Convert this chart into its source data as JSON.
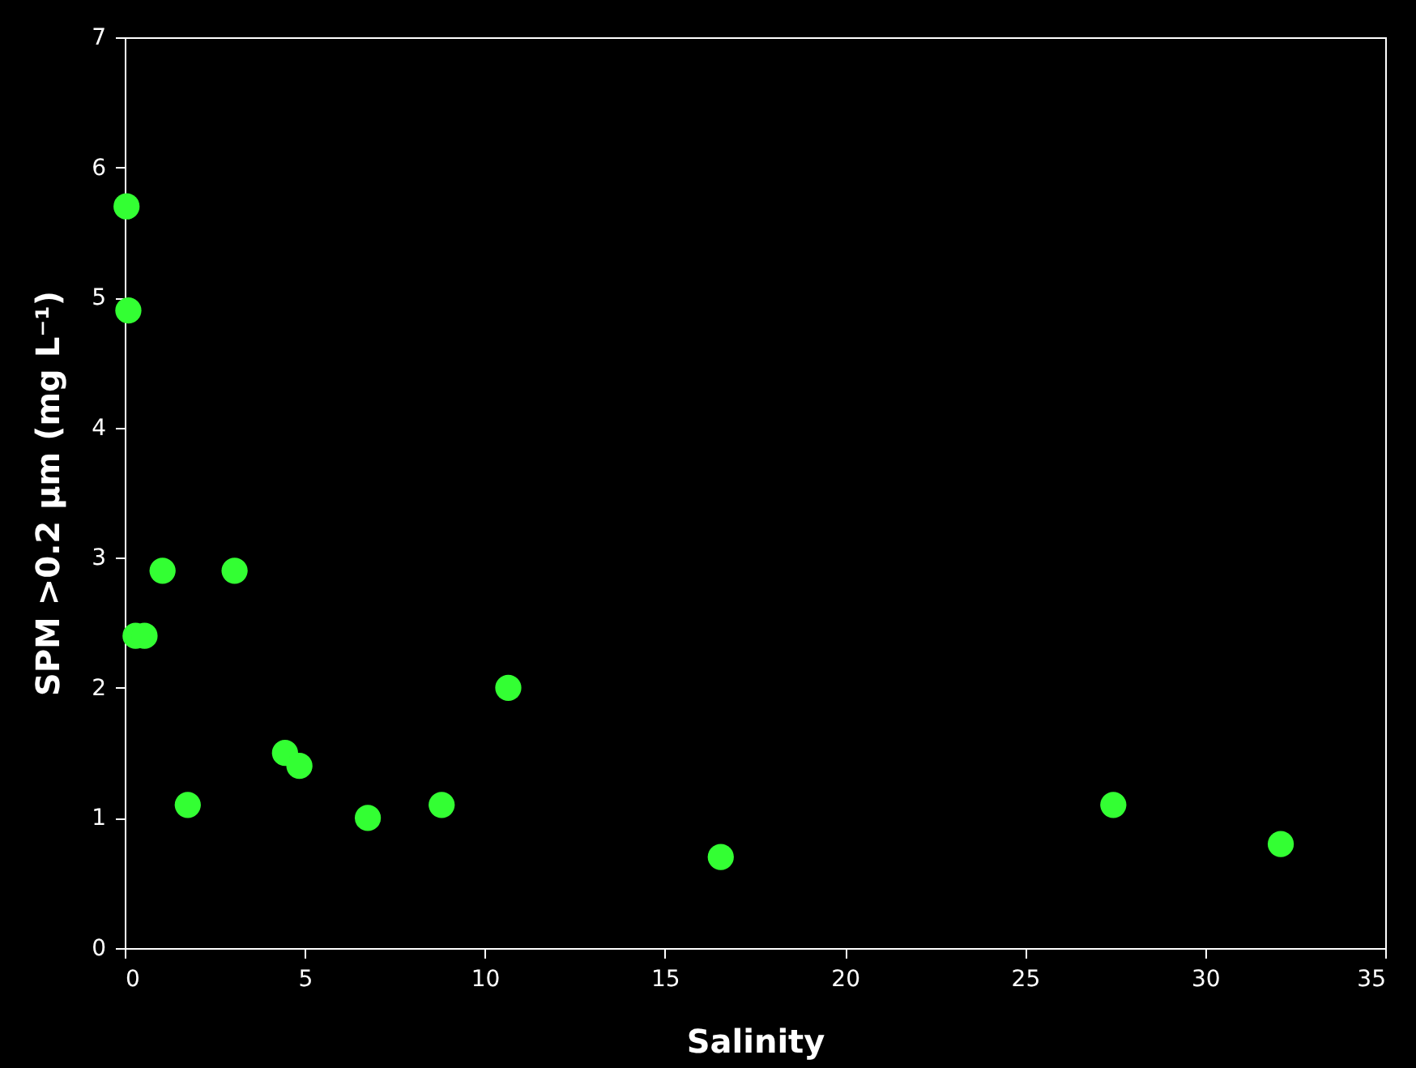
{
  "chart_data": {
    "type": "scatter",
    "xlabel": "Salinity",
    "ylabel": "SPM >0.2 µm (mg L⁻¹)",
    "x": [
      0.05,
      0.1,
      0.3,
      0.55,
      1.05,
      1.75,
      3.05,
      4.45,
      4.85,
      6.75,
      8.8,
      10.65,
      16.55,
      27.45,
      32.1
    ],
    "series": [
      {
        "color": "#33ff33",
        "values": [
          5.7,
          4.9,
          2.4,
          2.4,
          2.9,
          1.1,
          2.9,
          1.5,
          1.4,
          1.0,
          1.1,
          2.0,
          0.7,
          1.1,
          0.8
        ]
      }
    ],
    "xlim": [
      0,
      35
    ],
    "xticks": [
      0,
      5,
      10,
      15,
      20,
      25,
      30,
      35
    ],
    "ylim": [
      0,
      7
    ],
    "yticks": [
      0,
      1,
      2,
      3,
      4,
      5,
      6,
      7
    ],
    "marker": "circle"
  }
}
